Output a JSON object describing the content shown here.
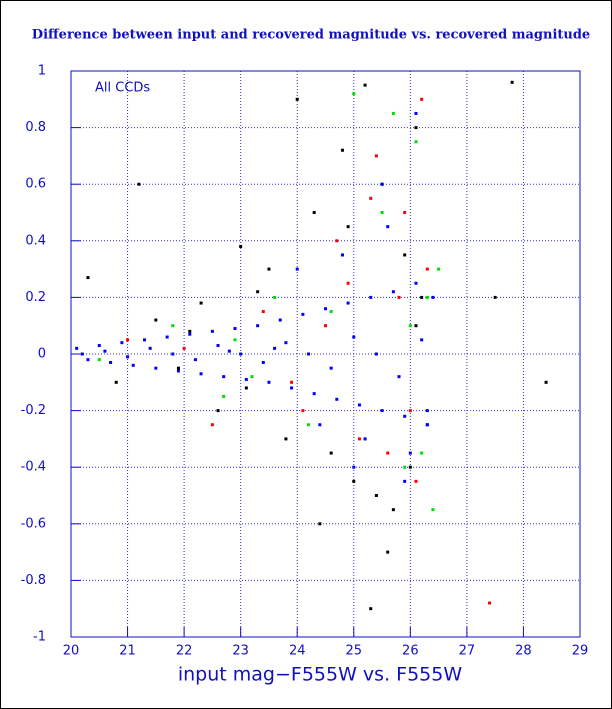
{
  "chart_data": {
    "type": "scatter",
    "title": "Difference between input and recovered magnitude vs. recovered magnitude",
    "annotation": "All CCDs",
    "x_label": "input mag−F555W vs. F555W",
    "xlim": [
      20,
      29
    ],
    "xticks": [
      20,
      21,
      22,
      23,
      24,
      25,
      26,
      27,
      28,
      29
    ],
    "ylim": [
      -1,
      1
    ],
    "yticks": [
      -1,
      -0.8,
      -0.6,
      -0.4,
      -0.2,
      0,
      0.2,
      0.4,
      0.6,
      0.8,
      1
    ],
    "grid": true,
    "series": [
      {
        "color": "#000000",
        "x": [
          20.3,
          20.8,
          21.2,
          21.5,
          21.9,
          22.3,
          22.6,
          23.0,
          23.1,
          23.5,
          23.8,
          24.0,
          24.3,
          24.6,
          24.8,
          25.0,
          25.2,
          25.4,
          25.5,
          25.7,
          25.9,
          26.0,
          26.1,
          26.2,
          26.3,
          24.4,
          23.3,
          22.1,
          25.6,
          27.8,
          28.4,
          27.5,
          25.3,
          24.9,
          26.1
        ],
        "values": [
          0.27,
          -0.1,
          0.6,
          0.12,
          -0.05,
          0.18,
          -0.2,
          0.38,
          -0.12,
          0.3,
          -0.3,
          0.9,
          0.5,
          -0.35,
          0.72,
          -0.45,
          0.95,
          -0.5,
          0.6,
          -0.55,
          0.35,
          -0.4,
          0.8,
          0.2,
          -0.25,
          -0.6,
          0.22,
          0.08,
          -0.7,
          0.96,
          -0.1,
          0.2,
          -0.9,
          0.45,
          0.1
        ]
      },
      {
        "color": "#ff0000",
        "x": [
          21.0,
          22.5,
          23.4,
          24.1,
          24.7,
          25.1,
          25.4,
          25.6,
          25.9,
          26.1,
          26.3,
          26.2,
          25.8,
          24.9,
          23.9,
          27.4,
          26.0,
          25.3,
          24.5,
          22.0
        ],
        "values": [
          0.05,
          -0.25,
          0.15,
          -0.2,
          0.4,
          -0.3,
          0.7,
          -0.35,
          0.5,
          -0.45,
          0.3,
          0.9,
          0.2,
          0.25,
          -0.1,
          -0.88,
          -0.2,
          0.55,
          0.1,
          0.02
        ]
      },
      {
        "color": "#00dd00",
        "x": [
          20.5,
          21.8,
          22.7,
          23.6,
          24.2,
          24.8,
          25.2,
          25.5,
          25.9,
          26.1,
          26.3,
          26.4,
          26.0,
          25.7,
          24.6,
          23.2,
          26.2,
          25.0,
          22.9,
          26.5
        ],
        "values": [
          -0.02,
          0.1,
          -0.15,
          0.2,
          -0.25,
          0.35,
          -0.3,
          0.5,
          -0.4,
          0.75,
          0.2,
          -0.55,
          0.1,
          0.85,
          0.15,
          -0.08,
          -0.35,
          0.92,
          0.05,
          0.3
        ]
      },
      {
        "color": "#0000ff",
        "x": [
          20.1,
          20.3,
          20.5,
          20.7,
          20.9,
          21.1,
          21.3,
          21.5,
          21.7,
          21.9,
          22.1,
          22.3,
          22.5,
          22.7,
          22.9,
          23.1,
          23.3,
          23.5,
          23.7,
          23.9,
          24.1,
          24.3,
          24.5,
          24.7,
          24.9,
          25.1,
          25.3,
          25.5,
          25.7,
          25.9,
          26.1,
          26.3,
          20.2,
          20.6,
          21.0,
          21.4,
          21.8,
          22.2,
          22.6,
          23.0,
          23.4,
          23.8,
          24.2,
          24.6,
          25.0,
          25.4,
          25.8,
          26.2,
          24.0,
          24.4,
          24.8,
          25.2,
          25.6,
          26.0,
          26.4,
          25.5,
          25.9,
          26.3,
          26.1,
          25.0,
          23.6,
          22.8
        ],
        "values": [
          0.02,
          -0.02,
          0.03,
          -0.03,
          0.04,
          -0.04,
          0.05,
          -0.05,
          0.06,
          -0.06,
          0.07,
          -0.07,
          0.08,
          -0.08,
          0.09,
          -0.09,
          0.1,
          -0.1,
          0.12,
          -0.12,
          0.14,
          -0.14,
          0.16,
          -0.16,
          0.18,
          -0.18,
          0.2,
          -0.2,
          0.22,
          -0.22,
          0.25,
          -0.25,
          0.0,
          0.01,
          -0.01,
          0.02,
          0.0,
          -0.02,
          0.03,
          0.0,
          -0.03,
          0.04,
          0.0,
          -0.05,
          0.06,
          0.0,
          -0.08,
          0.05,
          0.3,
          -0.25,
          0.35,
          -0.3,
          0.45,
          -0.35,
          0.2,
          0.6,
          -0.45,
          -0.2,
          0.85,
          -0.4,
          0.02,
          0.01
        ]
      }
    ]
  }
}
